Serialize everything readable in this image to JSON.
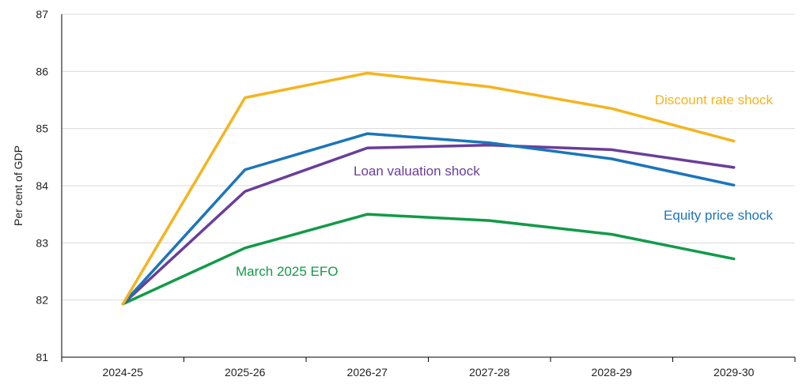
{
  "chart_data": {
    "type": "line",
    "ylabel": "Per cent of GDP",
    "xlabel": "",
    "title": "",
    "categories": [
      "2024-25",
      "2025-26",
      "2026-27",
      "2027-28",
      "2028-29",
      "2029-30"
    ],
    "ylim": [
      81,
      87
    ],
    "yticks": [
      81,
      82,
      83,
      84,
      85,
      86,
      87
    ],
    "grid": true,
    "legend": "inline labels",
    "series": [
      {
        "name": "Discount rate shock",
        "color": "#f5b41e",
        "values": [
          81.93,
          85.54,
          85.97,
          85.73,
          85.35,
          84.78
        ]
      },
      {
        "name": "Equity price shock",
        "color": "#1b75bb",
        "values": [
          81.93,
          84.28,
          84.91,
          84.75,
          84.47,
          84.01
        ]
      },
      {
        "name": "Loan valuation shock",
        "color": "#6a3d9a",
        "values": [
          81.93,
          83.9,
          84.66,
          84.71,
          84.63,
          84.32
        ]
      },
      {
        "name": "March 2025 EFO",
        "color": "#129a48",
        "values": [
          81.93,
          82.91,
          83.5,
          83.39,
          83.15,
          82.72
        ]
      }
    ]
  }
}
